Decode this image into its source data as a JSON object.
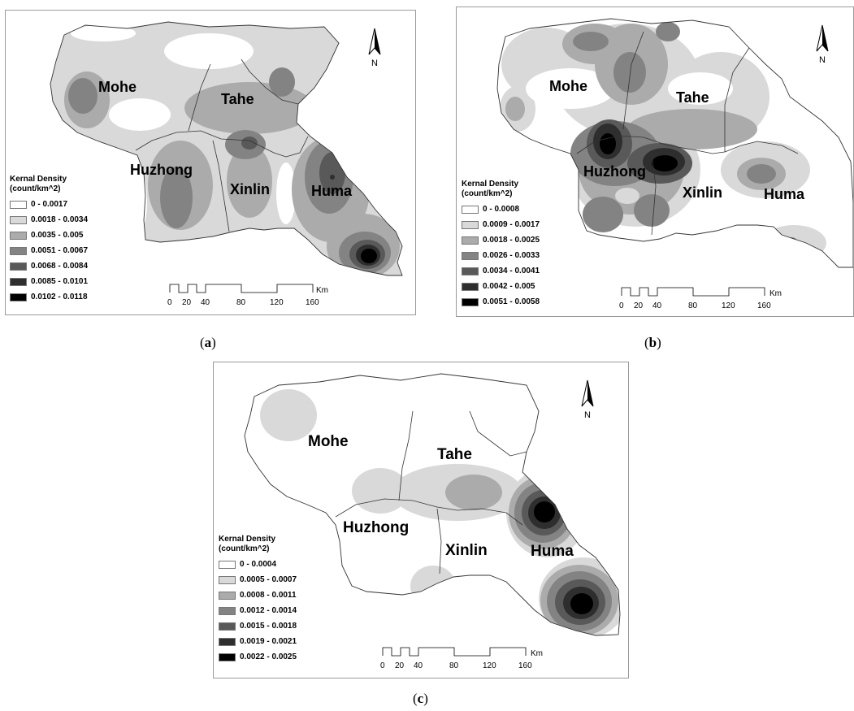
{
  "legend_title": [
    "Kernal Density",
    "(count/km^2)"
  ],
  "region_names": [
    "Mohe",
    "Tahe",
    "Huzhong",
    "Xinlin",
    "Huma"
  ],
  "shades": [
    "#ffffff",
    "#d9d9d9",
    "#ababab",
    "#838383",
    "#595959",
    "#2e2e2e",
    "#000000"
  ],
  "north_label": "N",
  "scale": {
    "ticks": [
      "0",
      "20",
      "40",
      "80",
      "120",
      "160"
    ],
    "unit": "Km"
  },
  "maps": [
    {
      "caption": "a",
      "legend": [
        "0 - 0.0017",
        "0.0018 - 0.0034",
        "0.0035 - 0.005",
        "0.0051 - 0.0067",
        "0.0068 - 0.0084",
        "0.0085 - 0.0101",
        "0.0102 - 0.0118"
      ]
    },
    {
      "caption": "b",
      "legend": [
        "0 - 0.0008",
        "0.0009 - 0.0017",
        "0.0018 - 0.0025",
        "0.0026 - 0.0033",
        "0.0034 - 0.0041",
        "0.0042 - 0.005",
        "0.0051 - 0.0058"
      ]
    },
    {
      "caption": "c",
      "legend": [
        "0 - 0.0004",
        "0.0005 - 0.0007",
        "0.0008 - 0.0011",
        "0.0012 - 0.0014",
        "0.0015 - 0.0018",
        "0.0019 - 0.0021",
        "0.0022 - 0.0025"
      ]
    }
  ]
}
